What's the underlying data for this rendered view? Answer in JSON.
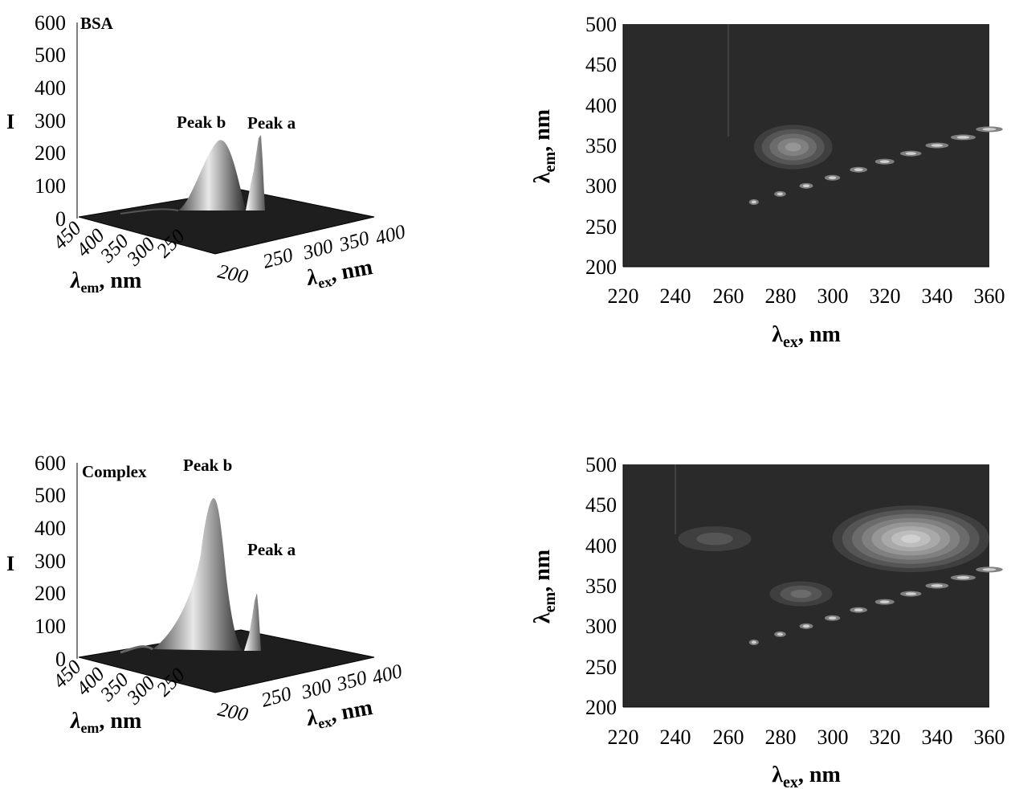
{
  "chart_data": [
    {
      "type": "surface",
      "label": "BSA",
      "zlabel": "I",
      "xlabel_main": "λ",
      "xlabel_sub": "ex",
      "xlabel_tail": ", nm",
      "ylabel_main": "λ",
      "ylabel_sub": "em",
      "ylabel_tail": ", nm",
      "zlim": [
        0,
        600
      ],
      "z_ticks": [
        "0",
        "100",
        "200",
        "300",
        "400",
        "500",
        "600"
      ],
      "ex_ticks": [
        "200",
        "250",
        "300",
        "350",
        "400"
      ],
      "em_ticks": [
        "450",
        "400",
        "350",
        "300",
        "250"
      ],
      "annotations": [
        "Peak b",
        "Peak a"
      ],
      "peaks": [
        {
          "name": "Peak b",
          "ex": 280,
          "em": 345,
          "intensity": 240
        },
        {
          "name": "Peak a",
          "ex": 230,
          "em": 340,
          "intensity": 250
        }
      ]
    },
    {
      "type": "contour",
      "xlabel_main": "λ",
      "xlabel_sub": "ex",
      "xlabel_tail": ", nm",
      "ylabel_main": "λ",
      "ylabel_sub": "em",
      "ylabel_tail": ", nm",
      "xlim": [
        220,
        360
      ],
      "ylim": [
        200,
        500
      ],
      "x_ticks": [
        "220",
        "240",
        "260",
        "280",
        "300",
        "320",
        "340",
        "360"
      ],
      "y_ticks": [
        "200",
        "250",
        "300",
        "350",
        "400",
        "450",
        "500"
      ],
      "blobs": [
        {
          "ex": 285,
          "em": 348,
          "rx": 15,
          "ry": 50,
          "levels": 5
        }
      ]
    },
    {
      "type": "surface",
      "label": "Complex",
      "zlabel": "I",
      "xlabel_main": "λ",
      "xlabel_sub": "ex",
      "xlabel_tail": ", nm",
      "ylabel_main": "λ",
      "ylabel_sub": "em",
      "ylabel_tail": ", nm",
      "zlim": [
        0,
        600
      ],
      "z_ticks": [
        "0",
        "100",
        "200",
        "300",
        "400",
        "500",
        "600"
      ],
      "ex_ticks": [
        "200",
        "250",
        "300",
        "350",
        "400"
      ],
      "em_ticks": [
        "450",
        "400",
        "350",
        "300",
        "250"
      ],
      "annotations": [
        "Peak b",
        "Peak a"
      ],
      "peaks": [
        {
          "name": "Peak b",
          "ex": 280,
          "em": 345,
          "intensity": 480
        },
        {
          "name": "Peak a",
          "ex": 230,
          "em": 340,
          "intensity": 195
        }
      ]
    },
    {
      "type": "contour",
      "xlabel_main": "λ",
      "xlabel_sub": "ex",
      "xlabel_tail": ", nm",
      "ylabel_main": "λ",
      "ylabel_sub": "em",
      "ylabel_tail": ", nm",
      "xlim": [
        220,
        360
      ],
      "ylim": [
        200,
        500
      ],
      "x_ticks": [
        "220",
        "240",
        "260",
        "280",
        "300",
        "320",
        "340",
        "360"
      ],
      "y_ticks": [
        "200",
        "250",
        "300",
        "350",
        "400",
        "450",
        "500"
      ],
      "blobs": [
        {
          "ex": 330,
          "em": 408,
          "rx": 30,
          "ry": 75,
          "levels": 8
        },
        {
          "ex": 288,
          "em": 340,
          "rx": 12,
          "ry": 28,
          "levels": 3
        },
        {
          "ex": 255,
          "em": 408,
          "rx": 14,
          "ry": 28,
          "levels": 2
        }
      ]
    }
  ],
  "colors": {
    "contour_background": "#2a2a2a",
    "contour_levels": [
      "#3f3f3f",
      "#555555",
      "#6b6b6b",
      "#808080",
      "#969696",
      "#a9a9a9",
      "#bdbdbd",
      "#d0d0d0",
      "#e2e2e2"
    ],
    "surface_light": "#f2f2f2",
    "surface_dark": "#1a1a1a"
  }
}
